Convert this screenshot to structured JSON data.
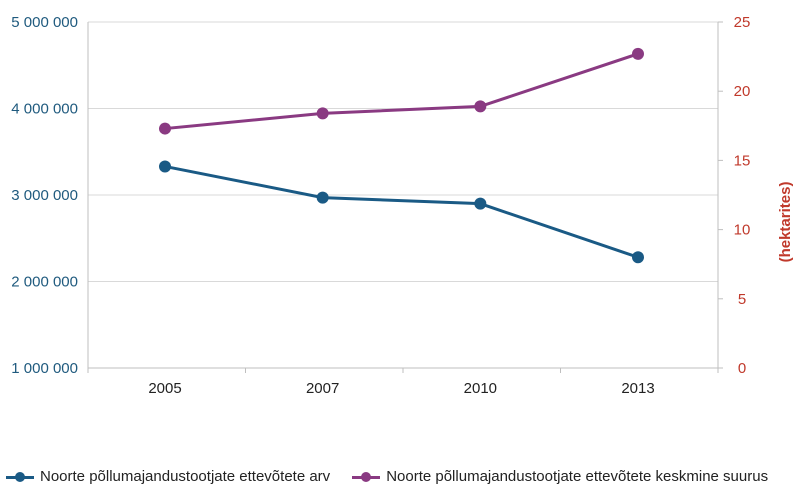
{
  "chart_data": {
    "type": "line",
    "categories": [
      "2005",
      "2007",
      "2010",
      "2013"
    ],
    "y_left": {
      "ticks": [
        "1 000 000",
        "2 000 000",
        "3 000 000",
        "4 000 000",
        "5 000 000"
      ],
      "tick_values": [
        1000000,
        2000000,
        3000000,
        4000000,
        5000000
      ],
      "ylim": [
        1000000,
        5000000
      ]
    },
    "y_right": {
      "label": "(hektarites)",
      "ticks": [
        "0",
        "5",
        "10",
        "15",
        "20",
        "25"
      ],
      "tick_values": [
        0,
        5,
        10,
        15,
        20,
        25
      ],
      "ylim": [
        0,
        25
      ]
    },
    "series": [
      {
        "name": "Noorte põllumajandustootjate ettevõtete arv",
        "axis": "left",
        "color": "#1a5a85",
        "values": [
          3330000,
          2970000,
          2900000,
          2280000
        ]
      },
      {
        "name": "Noorte põllumajandustootjate ettevõtete keskmine suurus",
        "axis": "right",
        "color": "#8a3a82",
        "values": [
          17.3,
          18.4,
          18.9,
          22.7
        ]
      }
    ],
    "grid": true,
    "legend_position": "bottom"
  }
}
